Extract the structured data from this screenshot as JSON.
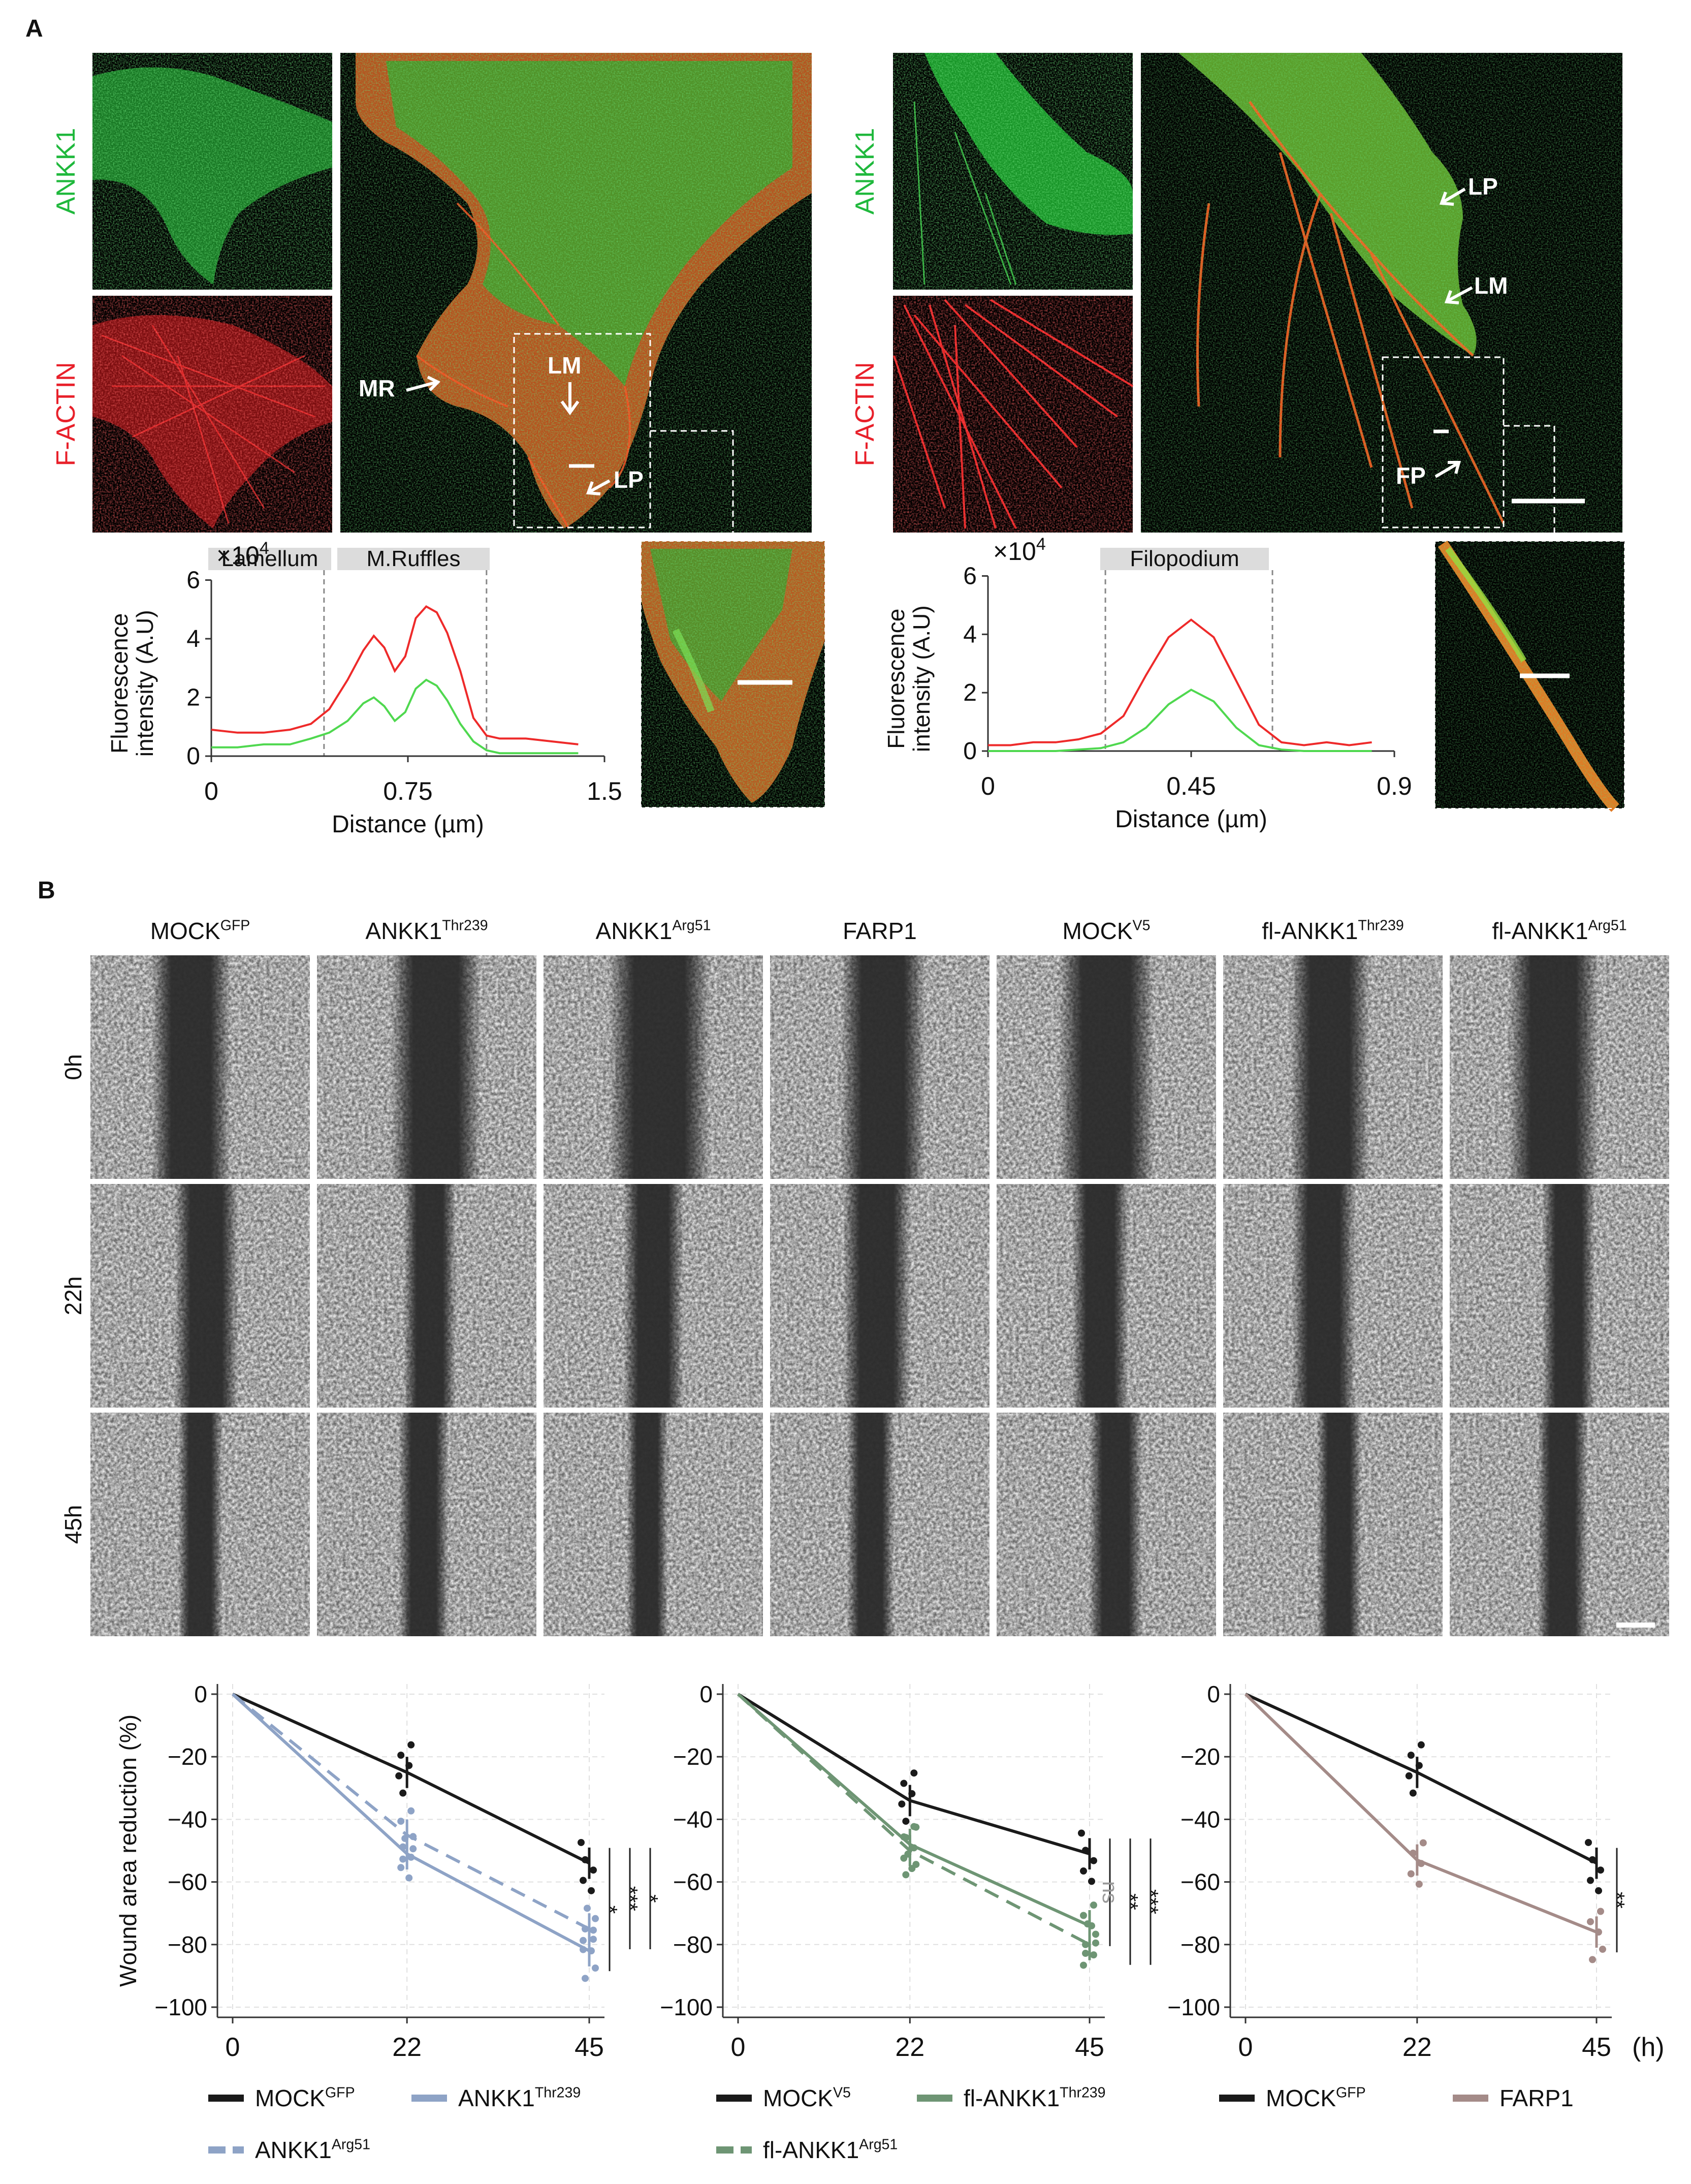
{
  "panel_a": {
    "label": "A",
    "left_cell": {
      "channels": [
        {
          "label": "ANKK1",
          "color": "#1fb83c"
        },
        {
          "label": "F-ACTIN",
          "color": "#e8202a"
        }
      ],
      "annotations": [
        "MR",
        "LM",
        "LP"
      ],
      "profile_regions": [
        "Lamellum",
        "M.Ruffles"
      ]
    },
    "right_cell": {
      "channels": [
        {
          "label": "ANKK1",
          "color": "#1fb83c"
        },
        {
          "label": "F-ACTIN",
          "color": "#e8202a"
        }
      ],
      "annotations": [
        "LP",
        "LM",
        "FP"
      ],
      "profile_regions": [
        "Filopodium"
      ]
    }
  },
  "panel_b": {
    "label": "B",
    "columns": [
      {
        "base": "MOCK",
        "sup": "GFP"
      },
      {
        "base": "ANKK1",
        "sup": "Thr239"
      },
      {
        "base": "ANKK1",
        "sup": "Arg51"
      },
      {
        "base": "FARP1",
        "sup": ""
      },
      {
        "base": "MOCK",
        "sup": "V5"
      },
      {
        "base": "fl-ANKK1",
        "sup": "Thr239"
      },
      {
        "base": "fl-ANKK1",
        "sup": "Arg51"
      }
    ],
    "rows": [
      "0h",
      "22h",
      "45h"
    ]
  },
  "chart_data": [
    {
      "id": "profile-left",
      "type": "line",
      "xlabel": "Distance (µm)",
      "ylabel": "Fluorescence intensity (A.U)",
      "y_multiplier": "×10^4",
      "xticks": [
        {
          "v": 0,
          "l": "0"
        },
        {
          "v": 0.75,
          "l": "0.75"
        },
        {
          "v": 1.5,
          "l": "1.5"
        }
      ],
      "yticks": [
        0,
        2,
        4,
        6
      ],
      "xlim": [
        0,
        1.5
      ],
      "ylim": [
        0,
        6.2
      ],
      "regions": [
        {
          "x0": 0.43,
          "x1": 1.05
        }
      ],
      "series": [
        {
          "color": "#ee2a2a",
          "x": [
            0,
            0.1,
            0.2,
            0.3,
            0.38,
            0.45,
            0.52,
            0.58,
            0.62,
            0.66,
            0.7,
            0.74,
            0.78,
            0.82,
            0.86,
            0.9,
            0.95,
            1.0,
            1.05,
            1.1,
            1.2,
            1.3,
            1.4
          ],
          "y": [
            0.9,
            0.8,
            0.8,
            0.9,
            1.1,
            1.6,
            2.6,
            3.6,
            4.1,
            3.7,
            2.9,
            3.4,
            4.7,
            5.1,
            4.9,
            4.2,
            2.9,
            1.3,
            0.7,
            0.6,
            0.6,
            0.5,
            0.4
          ]
        },
        {
          "color": "#4fd84f",
          "x": [
            0,
            0.1,
            0.2,
            0.3,
            0.38,
            0.45,
            0.52,
            0.58,
            0.62,
            0.66,
            0.7,
            0.74,
            0.78,
            0.82,
            0.86,
            0.9,
            0.95,
            1.0,
            1.05,
            1.1,
            1.2,
            1.3,
            1.4
          ],
          "y": [
            0.3,
            0.3,
            0.4,
            0.4,
            0.6,
            0.8,
            1.2,
            1.8,
            2.0,
            1.7,
            1.2,
            1.5,
            2.3,
            2.6,
            2.4,
            1.9,
            1.1,
            0.5,
            0.2,
            0.1,
            0.1,
            0.1,
            0.1
          ]
        }
      ]
    },
    {
      "id": "profile-right",
      "type": "line",
      "xlabel": "Distance (µm)",
      "ylabel": "Fluorescence intensity (A.U)",
      "y_multiplier": "×10^4",
      "xticks": [
        {
          "v": 0,
          "l": "0"
        },
        {
          "v": 0.45,
          "l": "0.45"
        },
        {
          "v": 0.9,
          "l": "0.9"
        }
      ],
      "yticks": [
        0,
        2,
        4,
        6
      ],
      "xlim": [
        0,
        0.9
      ],
      "ylim": [
        0,
        6.2
      ],
      "regions": [
        {
          "x0": 0.26,
          "x1": 0.63
        }
      ],
      "series": [
        {
          "color": "#ee2a2a",
          "x": [
            0,
            0.05,
            0.1,
            0.15,
            0.2,
            0.25,
            0.3,
            0.35,
            0.4,
            0.45,
            0.5,
            0.55,
            0.6,
            0.65,
            0.7,
            0.75,
            0.8,
            0.85
          ],
          "y": [
            0.2,
            0.2,
            0.3,
            0.3,
            0.4,
            0.6,
            1.2,
            2.6,
            3.9,
            4.5,
            3.9,
            2.4,
            0.9,
            0.3,
            0.2,
            0.3,
            0.2,
            0.3
          ]
        },
        {
          "color": "#4fd84f",
          "x": [
            0,
            0.05,
            0.1,
            0.15,
            0.2,
            0.25,
            0.3,
            0.35,
            0.4,
            0.45,
            0.5,
            0.55,
            0.6,
            0.65,
            0.7,
            0.75,
            0.8,
            0.85
          ],
          "y": [
            0,
            0,
            0,
            0,
            0.05,
            0.1,
            0.3,
            0.8,
            1.6,
            2.1,
            1.7,
            0.8,
            0.2,
            0.05,
            0,
            0,
            0,
            0
          ]
        }
      ]
    },
    {
      "id": "wound-1",
      "type": "line",
      "ylabel": "Wound area reduction (%)",
      "x": [
        0,
        22,
        45
      ],
      "xticks": [
        0,
        22,
        45
      ],
      "yticks": [
        0,
        -20,
        -40,
        -60,
        -80,
        -100
      ],
      "xlim": [
        0,
        45
      ],
      "ylim": [
        -100,
        0
      ],
      "series": [
        {
          "name": "MOCK",
          "name_sup": "GFP",
          "color": "#1a1a1a",
          "dash": false,
          "values": [
            0,
            -25,
            -54
          ]
        },
        {
          "name": "ANKK1",
          "name_sup": "Thr239",
          "color": "#8ea3c6",
          "dash": false,
          "values": [
            0,
            -51,
            -82
          ]
        },
        {
          "name": "ANKK1",
          "name_sup": "Arg51",
          "color": "#8ea3c6",
          "dash": true,
          "values": [
            0,
            -45,
            -75
          ]
        }
      ],
      "significance": [
        "*",
        "***",
        "*"
      ]
    },
    {
      "id": "wound-2",
      "type": "line",
      "x": [
        0,
        22,
        45
      ],
      "xticks": [
        0,
        22,
        45
      ],
      "yticks": [
        0,
        -20,
        -40,
        -60,
        -80,
        -100
      ],
      "xlim": [
        0,
        45
      ],
      "ylim": [
        -100,
        0
      ],
      "series": [
        {
          "name": "MOCK",
          "name_sup": "V5",
          "color": "#1a1a1a",
          "dash": false,
          "values": [
            0,
            -34,
            -51
          ]
        },
        {
          "name": "fl-ANKK1",
          "name_sup": "Thr239",
          "color": "#6e9574",
          "dash": false,
          "values": [
            0,
            -48,
            -74
          ]
        },
        {
          "name": "fl-ANKK1",
          "name_sup": "Arg51",
          "color": "#6e9574",
          "dash": true,
          "values": [
            0,
            -50,
            -80
          ]
        }
      ],
      "significance": [
        "ns",
        "**",
        "***"
      ]
    },
    {
      "id": "wound-3",
      "type": "line",
      "x": [
        0,
        22,
        45
      ],
      "xticks": [
        0,
        22,
        45
      ],
      "yticks": [
        0,
        -20,
        -40,
        -60,
        -80,
        -100
      ],
      "xlim": [
        0,
        45
      ],
      "ylim": [
        -100,
        0
      ],
      "x_unit": "(h)",
      "series": [
        {
          "name": "MOCK",
          "name_sup": "GFP",
          "color": "#1a1a1a",
          "dash": false,
          "values": [
            0,
            -25,
            -54
          ]
        },
        {
          "name": "FARP1",
          "name_sup": "",
          "color": "#a48b88",
          "dash": false,
          "values": [
            0,
            -53,
            -76
          ]
        }
      ],
      "significance": [
        "**"
      ]
    }
  ]
}
